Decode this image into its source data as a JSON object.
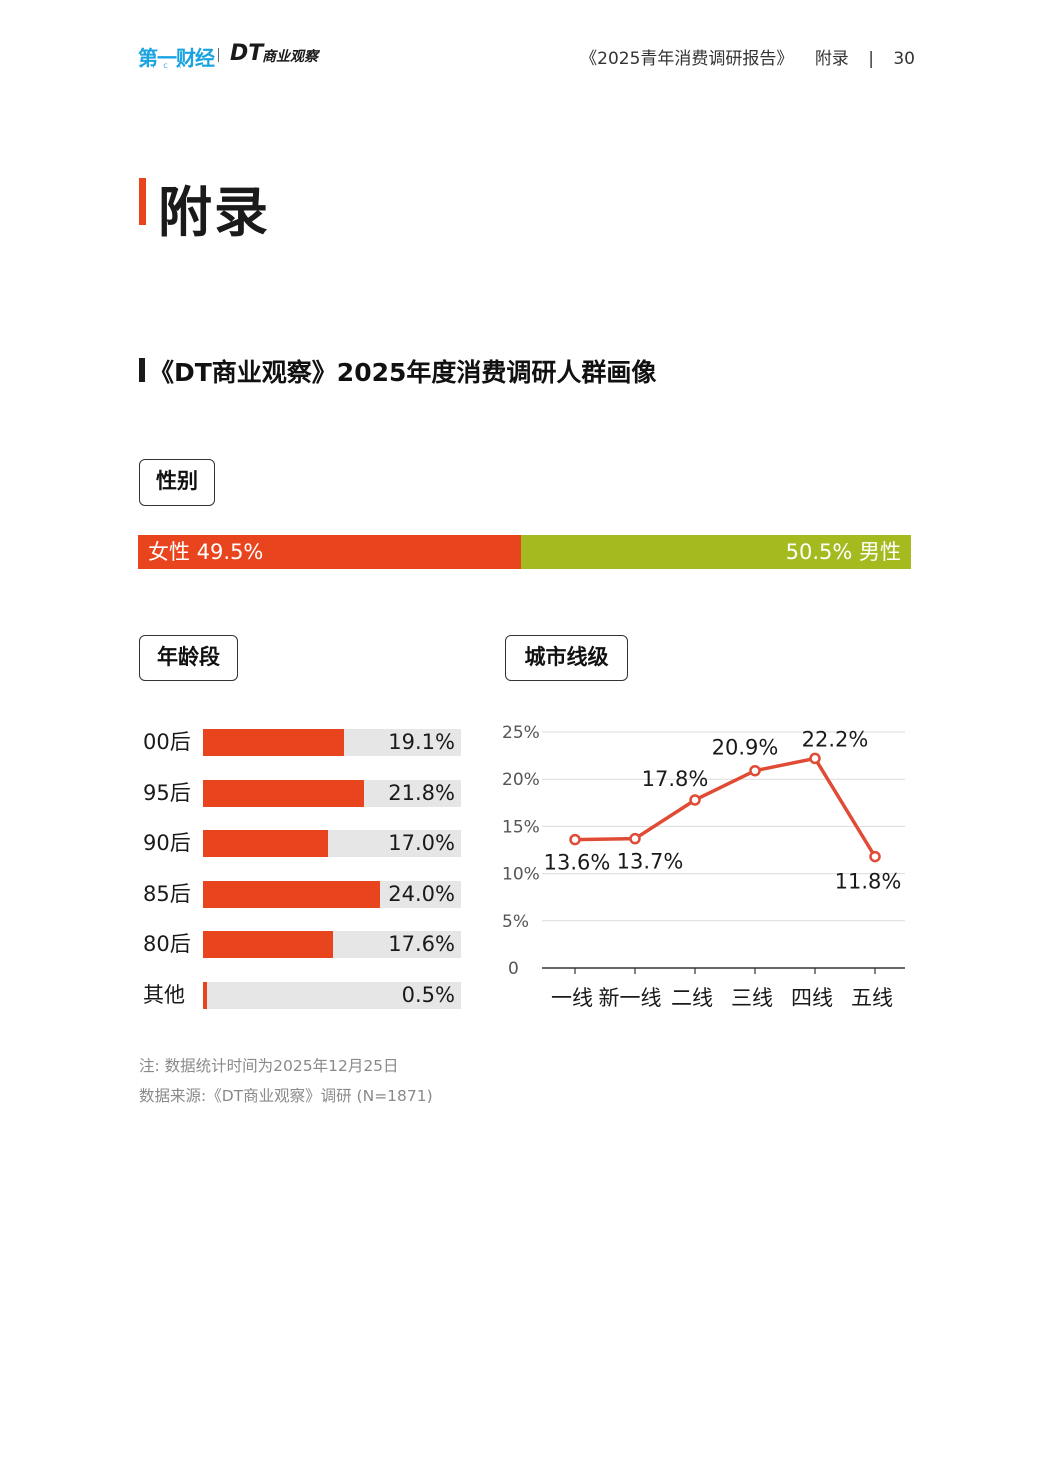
{
  "header": {
    "logo_yicai": "第一财经",
    "logo_yicai_sub": "YICAI",
    "logo_dt": "DT",
    "logo_dt_cn": "商业观察",
    "report_title": "《2025青年消费调研报告》",
    "section": "附录",
    "separator": "|",
    "page_number": "30"
  },
  "page_title": "附录",
  "section_title": "《DT商业观察》2025年度消费调研人群画像",
  "gender": {
    "tag": "性别",
    "female_label": "女性 49.5%",
    "male_label": "50.5% 男性",
    "female_share": 49.5,
    "male_share": 50.5,
    "colors": {
      "female": "#e8441d",
      "male": "#a4ba1f"
    }
  },
  "age": {
    "tag": "年龄段",
    "items": [
      {
        "label": "00后",
        "value": 19.1,
        "value_text": "19.1%"
      },
      {
        "label": "95后",
        "value": 21.8,
        "value_text": "21.8%"
      },
      {
        "label": "90后",
        "value": 17.0,
        "value_text": "17.0%"
      },
      {
        "label": "85后",
        "value": 24.0,
        "value_text": "24.0%"
      },
      {
        "label": "80后",
        "value": 17.6,
        "value_text": "17.6%"
      },
      {
        "label": "其他",
        "value": 0.5,
        "value_text": "0.5%"
      }
    ],
    "scale_max": 35
  },
  "city": {
    "tag": "城市线级"
  },
  "chart_data": [
    {
      "type": "bar",
      "orientation": "horizontal",
      "title": "年龄段",
      "categories": [
        "00后",
        "95后",
        "90后",
        "85后",
        "80后",
        "其他"
      ],
      "values": [
        19.1,
        21.8,
        17.0,
        24.0,
        17.6,
        0.5
      ],
      "unit": "%"
    },
    {
      "type": "line",
      "title": "城市线级",
      "categories": [
        "一线",
        "新一线",
        "二线",
        "三线",
        "四线",
        "五线"
      ],
      "values": [
        13.6,
        13.7,
        17.8,
        20.9,
        22.2,
        11.8
      ],
      "value_labels": [
        "13.6%",
        "13.7%",
        "17.8%",
        "20.9%",
        "22.2%",
        "11.8%"
      ],
      "yticks": [
        "0",
        "5%",
        "10%",
        "15%",
        "20%",
        "25%"
      ],
      "ylim": [
        0,
        25
      ],
      "grid": true,
      "color": "#e04b36"
    }
  ],
  "notes": {
    "line1": "注: 数据统计时间为2025年12月25日",
    "line2": "数据来源:《DT商业观察》调研 (N=1871)"
  }
}
